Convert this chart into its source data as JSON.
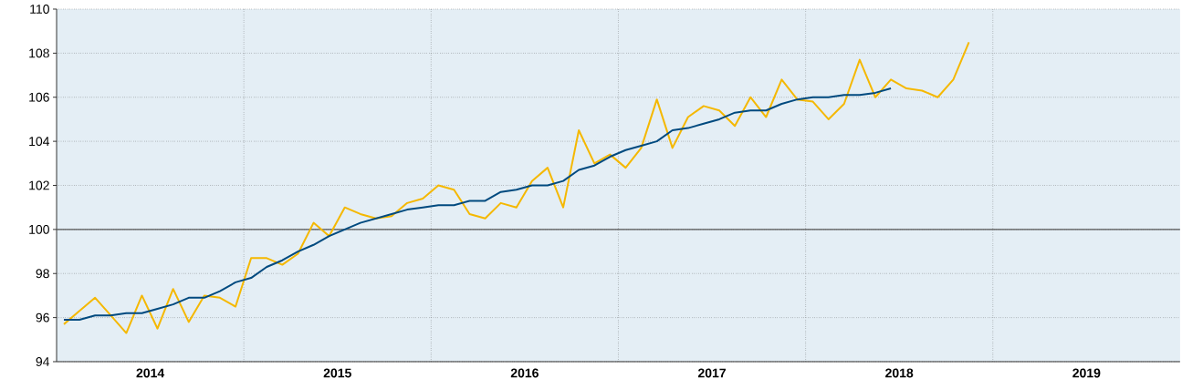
{
  "chart_data": {
    "type": "line",
    "x": [
      "2014-01-15",
      "2014-02-15",
      "2014-03-15",
      "2014-04-15",
      "2014-05-15",
      "2014-06-15",
      "2014-07-15",
      "2014-08-15",
      "2014-09-15",
      "2014-10-15",
      "2014-11-15",
      "2014-12-15",
      "2015-01-15",
      "2015-02-15",
      "2015-03-15",
      "2015-04-15",
      "2015-05-15",
      "2015-06-15",
      "2015-07-15",
      "2015-08-15",
      "2015-09-15",
      "2015-10-15",
      "2015-11-15",
      "2015-12-15",
      "2016-01-15",
      "2016-02-15",
      "2016-03-15",
      "2016-04-15",
      "2016-05-15",
      "2016-06-15",
      "2016-07-15",
      "2016-08-15",
      "2016-09-15",
      "2016-10-15",
      "2016-11-15",
      "2016-12-15",
      "2017-01-15",
      "2017-02-15",
      "2017-03-15",
      "2017-04-15",
      "2017-05-15",
      "2017-06-15",
      "2017-07-15",
      "2017-08-15",
      "2017-09-15",
      "2017-10-15",
      "2017-11-15",
      "2017-12-15",
      "2018-01-15",
      "2018-02-15",
      "2018-03-15",
      "2018-04-15",
      "2018-05-15",
      "2018-06-15",
      "2018-07-15",
      "2018-08-15",
      "2018-09-15",
      "2018-10-15",
      "2018-11-15"
    ],
    "series": [
      {
        "color": "#f5b800",
        "values": [
          95.7,
          96.3,
          96.9,
          96.1,
          95.3,
          97.0,
          95.5,
          97.3,
          95.8,
          97.0,
          96.9,
          96.5,
          98.7,
          98.7,
          98.4,
          98.9,
          100.3,
          99.7,
          101.0,
          100.7,
          100.5,
          100.6,
          101.2,
          101.4,
          102.0,
          101.8,
          100.7,
          100.5,
          101.2,
          101.0,
          102.2,
          102.8,
          101.0,
          104.5,
          103.0,
          103.4,
          102.8,
          103.7,
          105.9,
          103.7,
          105.1,
          105.6,
          105.4,
          104.7,
          106.0,
          105.1,
          106.8,
          105.9,
          105.8,
          105.0,
          105.7,
          107.7,
          106.0,
          106.8,
          106.4,
          106.3,
          106.0,
          106.8,
          108.5
        ]
      },
      {
        "color": "#004a7f",
        "x": [
          "2014-01-15",
          "2014-02-15",
          "2014-03-15",
          "2014-04-15",
          "2014-05-15",
          "2014-06-15",
          "2014-07-15",
          "2014-08-15",
          "2014-09-15",
          "2014-10-15",
          "2014-11-15",
          "2014-12-15",
          "2015-01-15",
          "2015-02-15",
          "2015-03-15",
          "2015-04-15",
          "2015-05-15",
          "2015-06-15",
          "2015-07-15",
          "2015-08-15",
          "2015-09-15",
          "2015-10-15",
          "2015-11-15",
          "2015-12-15",
          "2016-01-15",
          "2016-02-15",
          "2016-03-15",
          "2016-04-15",
          "2016-05-15",
          "2016-06-15",
          "2016-07-15",
          "2016-08-15",
          "2016-09-15",
          "2016-10-15",
          "2016-11-15",
          "2016-12-15",
          "2017-01-15",
          "2017-02-15",
          "2017-03-15",
          "2017-04-15",
          "2017-05-15",
          "2017-06-15",
          "2017-07-15",
          "2017-08-15",
          "2017-09-15",
          "2017-10-15",
          "2017-11-15",
          "2017-12-15",
          "2018-01-15",
          "2018-02-15",
          "2018-03-15",
          "2018-04-15",
          "2018-05-15",
          "2018-06-15"
        ],
        "values": [
          95.9,
          95.9,
          96.1,
          96.1,
          96.2,
          96.2,
          96.4,
          96.6,
          96.9,
          96.9,
          97.2,
          97.6,
          97.8,
          98.3,
          98.6,
          99.0,
          99.3,
          99.7,
          100.0,
          100.3,
          100.5,
          100.7,
          100.9,
          101.0,
          101.1,
          101.1,
          101.3,
          101.3,
          101.7,
          101.8,
          102.0,
          102.0,
          102.2,
          102.7,
          102.9,
          103.3,
          103.6,
          103.8,
          104.0,
          104.5,
          104.6,
          104.8,
          105.0,
          105.3,
          105.4,
          105.4,
          105.7,
          105.9,
          106.0,
          106.0,
          106.1,
          106.1,
          106.2,
          106.4
        ]
      }
    ],
    "xlim": [
      "2014-01-01",
      "2020-01-01"
    ],
    "xticks": [
      {
        "value": "2014-07-01",
        "label": "2014"
      },
      {
        "value": "2015-07-01",
        "label": "2015"
      },
      {
        "value": "2016-07-01",
        "label": "2016"
      },
      {
        "value": "2017-07-01",
        "label": "2017"
      },
      {
        "value": "2018-07-01",
        "label": "2018"
      },
      {
        "value": "2019-07-01",
        "label": "2019"
      },
      {
        "value": "2015-01-01",
        "label": null
      },
      {
        "value": "2016-01-01",
        "label": null
      },
      {
        "value": "2017-01-01",
        "label": null
      },
      {
        "value": "2018-01-01",
        "label": null
      },
      {
        "value": "2019-01-01",
        "label": null
      }
    ],
    "ylim": [
      94,
      110
    ],
    "yticks": [
      94,
      96,
      98,
      100,
      102,
      104,
      106,
      108,
      110
    ],
    "grid": true,
    "ref_lines": [
      {
        "axis": "y",
        "value": 100,
        "color": "#555555",
        "line_style": "solid"
      }
    ],
    "line_style": "solid",
    "marker": "none"
  }
}
